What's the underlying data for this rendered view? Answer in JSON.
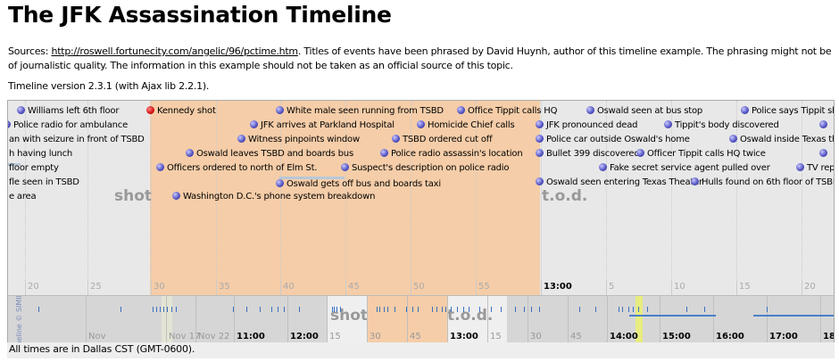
{
  "title": "The JFK Assassination Timeline",
  "intro": {
    "sources_label": "Sources: ",
    "sources_link": "http://roswell.fortunecity.com/angelic/96/pctime.htm",
    "sources_text": ". Titles of events have been phrased by David Huynh, author of this timeline example. The phrasing might not be of journalistic quality. The information in this example should not be taken as an official source of this topic."
  },
  "version": "Timeline version 2.3.1 (with Ajax lib 2.2.1).",
  "colors": {
    "highlight": "#f5cda8",
    "event_dot": "#5050c0",
    "shot_dot": "#d01010",
    "overview_marker": "#3a70c0",
    "today_marker": "#e8ec80"
  },
  "detail_band": {
    "highlight_labels": {
      "shot": "shot",
      "tod": "t.o.d."
    },
    "ticks": [
      "20",
      "25",
      "30",
      "35",
      "40",
      "45",
      "50",
      "55",
      "13:00",
      "5",
      "10",
      "15",
      "20"
    ],
    "events": [
      {
        "text": "Williams left 6th floor",
        "icon": "dot"
      },
      {
        "text": "Kennedy shot",
        "icon": "red-dot"
      },
      {
        "text": "White male seen running from TSBD",
        "icon": "dot"
      },
      {
        "text": "Office Tippit calls HQ",
        "icon": "dot"
      },
      {
        "text": "Oswald seen at bus stop",
        "icon": "dot"
      },
      {
        "text": "Police says Tippit sh",
        "icon": "dot"
      },
      {
        "text": "Police radio for ambulance",
        "icon": "dot"
      },
      {
        "text": "JFK arrives at Parkland Hospital",
        "icon": "dot"
      },
      {
        "text": "Homicide Chief calls",
        "icon": "dot"
      },
      {
        "text": "JFK pronounced dead",
        "icon": "dot"
      },
      {
        "text": "Tippit's body discovered",
        "icon": "dot"
      },
      {
        "text": "",
        "icon": "dot"
      },
      {
        "text": "an with seizure in front of TSBD",
        "icon": "none"
      },
      {
        "text": "Witness pinpoints window",
        "icon": "dot"
      },
      {
        "text": "TSBD ordered cut off",
        "icon": "dot"
      },
      {
        "text": "Police car outside Oswald's home",
        "icon": "dot"
      },
      {
        "text": "Oswald inside Texas the",
        "icon": "dot"
      },
      {
        "text": "h having lunch",
        "icon": "none"
      },
      {
        "text": "Oswald leaves TSBD and boards bus",
        "icon": "dot"
      },
      {
        "text": "Police radio assassin's location",
        "icon": "dot"
      },
      {
        "text": "Bullet 399 discovered",
        "icon": "dot"
      },
      {
        "text": "Officer Tippit calls HQ twice",
        "icon": "dot"
      },
      {
        "text": "",
        "icon": "dot"
      },
      {
        "text": "floor empty",
        "icon": "none"
      },
      {
        "text": "Officers ordered to north of Elm St.",
        "icon": "dot"
      },
      {
        "text": "Suspect's description on police radio",
        "icon": "dot"
      },
      {
        "text": "Fake secret service agent pulled over",
        "icon": "dot"
      },
      {
        "text": "TV rep",
        "icon": "dot"
      },
      {
        "text": "fle seen in TSBD",
        "icon": "none"
      },
      {
        "text": "Oswald gets off bus and boards taxi",
        "icon": "dot"
      },
      {
        "text": "Oswald seen entering Texas Theater",
        "icon": "dot"
      },
      {
        "text": "Hulls found on 6th floor of TSBD",
        "icon": "dot"
      },
      {
        "text": "e area",
        "icon": "none"
      },
      {
        "text": "Washington D.C.'s phone system breakdown",
        "icon": "dot"
      }
    ]
  },
  "overview_band": {
    "copyright": "Timeline © SIMILE",
    "highlight_labels": {
      "shot": "shot",
      "tod": "t.o.d."
    },
    "ticks": [
      {
        "label": "Nov",
        "major": false
      },
      {
        "label": "Nov 17",
        "major": false
      },
      {
        "label": "Nov 22",
        "major": false
      },
      {
        "label": "11:00",
        "major": true
      },
      {
        "label": "12:00",
        "major": true
      },
      {
        "label": "15",
        "major": false
      },
      {
        "label": "30",
        "major": false
      },
      {
        "label": "45",
        "major": false
      },
      {
        "label": "13:00",
        "major": true
      },
      {
        "label": "15",
        "major": false
      },
      {
        "label": "30",
        "major": false
      },
      {
        "label": "45",
        "major": false
      },
      {
        "label": "14:00",
        "major": true
      },
      {
        "label": "15:00",
        "major": true
      },
      {
        "label": "16:00",
        "major": true
      },
      {
        "label": "17:00",
        "major": true
      },
      {
        "label": "18:",
        "major": true
      }
    ]
  },
  "footer": "All times are in Dallas CST (GMT-0600)."
}
